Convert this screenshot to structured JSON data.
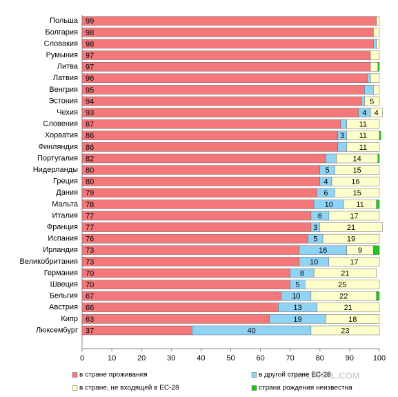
{
  "chart_data": {
    "type": "stacked_bar_horizontal",
    "categories": [
      "Польша",
      "Болгария",
      "Словакия",
      "Румыния",
      "Литва",
      "Латвия",
      "Венгрия",
      "Эстония",
      "Чехия",
      "Словения",
      "Хорватия",
      "Финляндия",
      "Португалия",
      "Нидерланды",
      "Греция",
      "Дания",
      "Мальта",
      "Италия",
      "Франция",
      "Испания",
      "Ирландия",
      "Великобритания",
      "Германия",
      "Швеция",
      "Бельгия",
      "Австрия",
      "Кипр",
      "Люксембург"
    ],
    "series": [
      {
        "name": "в стране проживания",
        "color": "#f4777a",
        "values": [
          99,
          98,
          98,
          97,
          97,
          96,
          95,
          94,
          93,
          87,
          86,
          86,
          82,
          80,
          80,
          79,
          78,
          77,
          77,
          76,
          73,
          73,
          70,
          70,
          67,
          66,
          63,
          37
        ],
        "value_labels": [
          "99",
          "98",
          "98",
          "97",
          "97",
          "96",
          "95",
          "94",
          "93",
          "87",
          "86",
          "86",
          "82",
          "80",
          "80",
          "79",
          "78",
          "77",
          "77",
          "76",
          "73",
          "73",
          "70",
          "70",
          "67",
          "66",
          "63",
          "37"
        ]
      },
      {
        "name": "в другой стране ЕС-28",
        "color": "#8fd3f5",
        "values": [
          0,
          0,
          1,
          0,
          0,
          1,
          3,
          1,
          4,
          2,
          3,
          3,
          3.5,
          5,
          4,
          6,
          10,
          6,
          3,
          5,
          16,
          10,
          8,
          5,
          10,
          13,
          19,
          40
        ],
        "value_labels": [
          null,
          null,
          null,
          null,
          null,
          null,
          null,
          null,
          "4",
          null,
          "3",
          null,
          null,
          "5",
          "4",
          "6",
          "10",
          "6",
          "3",
          "5",
          "16",
          "10",
          "8",
          "5",
          "10",
          "13",
          "19",
          "40"
        ]
      },
      {
        "name": "в стране, не входящей в ЕС-28",
        "color": "#ffffcc",
        "values": [
          1,
          2,
          1,
          3,
          2.5,
          3,
          2,
          5,
          4,
          11,
          11,
          11,
          14,
          15,
          16,
          15,
          11,
          17,
          21,
          19,
          9,
          17,
          21,
          25,
          22,
          21,
          18,
          23
        ],
        "value_labels": [
          null,
          null,
          null,
          null,
          null,
          null,
          null,
          "5",
          "4",
          "11",
          "11",
          "11",
          "14",
          "15",
          "16",
          "15",
          "11",
          "17",
          "21",
          "19",
          "9",
          "17",
          "21",
          "25",
          "22",
          "21",
          "18",
          "23"
        ]
      },
      {
        "name": "страна рождения неизвестна",
        "color": "#22c422",
        "values": [
          0,
          0,
          0,
          0,
          0.5,
          0,
          0,
          0,
          0,
          0,
          0.5,
          0,
          0.5,
          0,
          0,
          0,
          1,
          0,
          0,
          0,
          2,
          0,
          0,
          0,
          1,
          0,
          0,
          0
        ],
        "value_labels": [
          null,
          null,
          null,
          null,
          null,
          null,
          null,
          null,
          null,
          null,
          null,
          null,
          null,
          null,
          null,
          null,
          null,
          null,
          null,
          null,
          null,
          null,
          null,
          null,
          null,
          null,
          null,
          null
        ]
      }
    ],
    "xlim": [
      0,
      100
    ],
    "xticks": [
      0,
      10,
      20,
      30,
      40,
      50,
      60,
      70,
      80,
      90,
      100
    ],
    "legend": "bottom",
    "watermark": "YAPLAKAL.COM"
  }
}
